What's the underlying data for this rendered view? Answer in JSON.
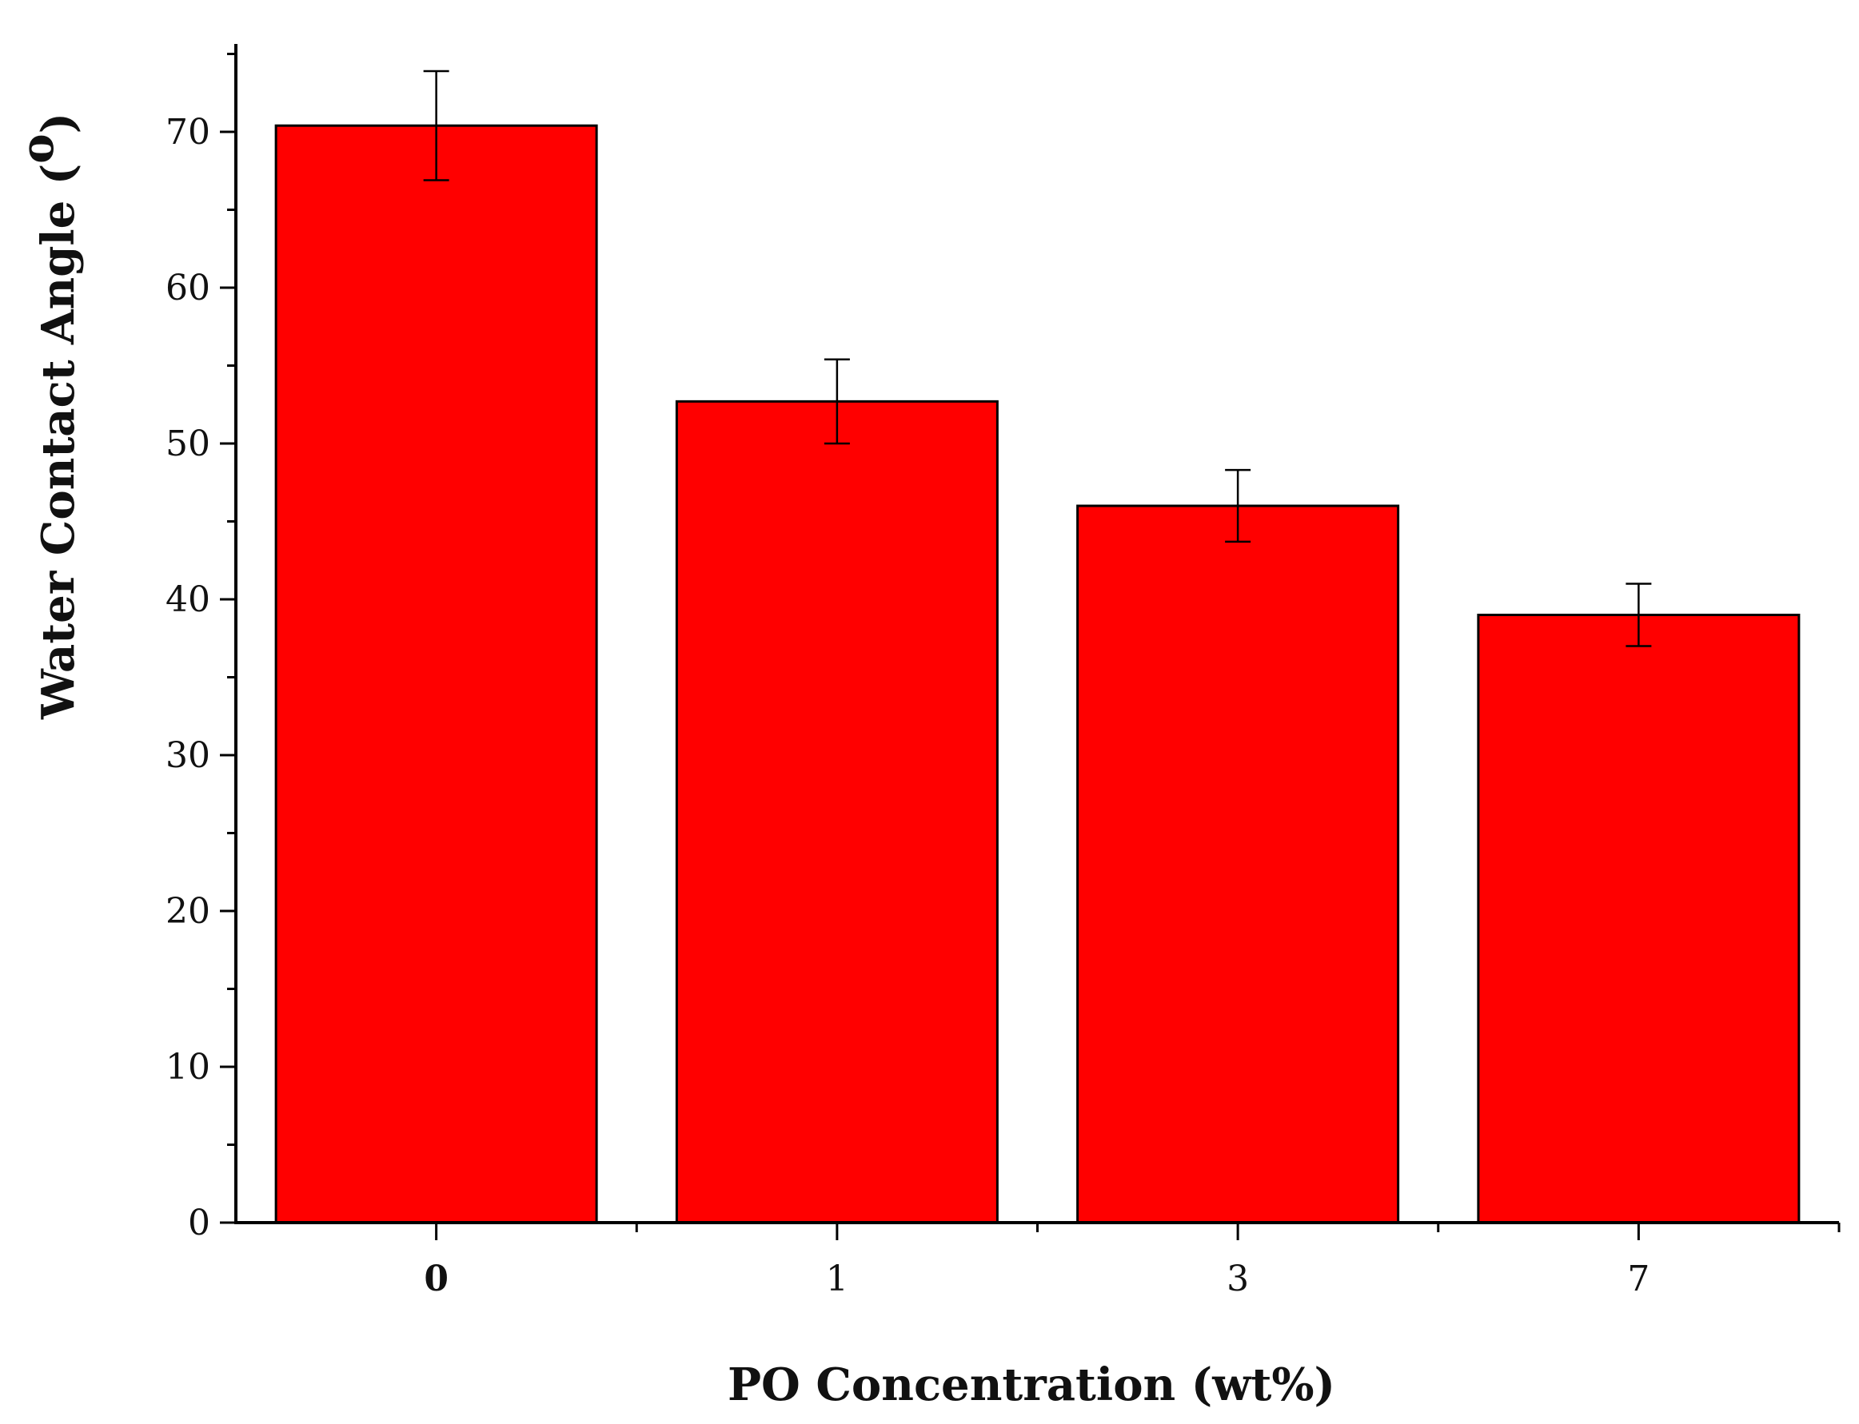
{
  "chart_data": {
    "type": "bar",
    "categories": [
      "0",
      "1",
      "3",
      "7"
    ],
    "values": [
      70.4,
      52.7,
      46.0,
      39.0
    ],
    "errors": [
      3.5,
      2.7,
      2.3,
      2.0
    ],
    "xlabel": "PO Concentration (wt%)",
    "ylabel": "Water Contact Angle (",
    "ylabel_sup": "o",
    "ylabel_close": ")",
    "ylim": [
      0,
      75
    ],
    "yticks": [
      0,
      10,
      20,
      30,
      40,
      50,
      60,
      70
    ],
    "ytick_labels": [
      "0",
      "10",
      "20",
      "30",
      "40",
      "50",
      "60",
      "70"
    ],
    "grid": false,
    "colors": {
      "bar_fill": "#ff0000",
      "bar_stroke": "#000000",
      "axis": "#000000"
    }
  }
}
